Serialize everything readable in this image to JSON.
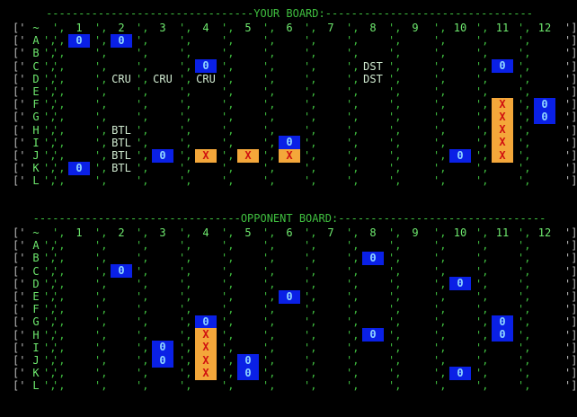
{
  "your_board": {
    "title": "YOUR BOARD:",
    "corner": "~",
    "columns": [
      "1",
      "2",
      "3",
      "4",
      "5",
      "6",
      "7",
      "8",
      "9",
      "10",
      "11",
      "12"
    ],
    "rows": [
      "A",
      "B",
      "C",
      "D",
      "E",
      "F",
      "G",
      "H",
      "I",
      "J",
      "K",
      "L"
    ],
    "marks": [
      {
        "row": "A",
        "col": "1",
        "text": "0",
        "type": "miss"
      },
      {
        "row": "A",
        "col": "2",
        "text": "0",
        "type": "miss"
      },
      {
        "row": "C",
        "col": "4",
        "text": "0",
        "type": "miss"
      },
      {
        "row": "C",
        "col": "11",
        "text": "0",
        "type": "miss"
      },
      {
        "row": "F",
        "col": "12",
        "text": "0",
        "type": "miss"
      },
      {
        "row": "G",
        "col": "12",
        "text": "0",
        "type": "miss"
      },
      {
        "row": "I",
        "col": "6",
        "text": "0",
        "type": "miss"
      },
      {
        "row": "J",
        "col": "3",
        "text": "0",
        "type": "miss"
      },
      {
        "row": "J",
        "col": "10",
        "text": "0",
        "type": "miss"
      },
      {
        "row": "K",
        "col": "1",
        "text": "0",
        "type": "miss"
      },
      {
        "row": "J",
        "col": "4",
        "text": "X",
        "type": "hit"
      },
      {
        "row": "J",
        "col": "5",
        "text": "X",
        "type": "hit"
      },
      {
        "row": "J",
        "col": "6",
        "text": "X",
        "type": "hit"
      },
      {
        "row": "F",
        "col": "11",
        "text": "X",
        "type": "hit"
      },
      {
        "row": "G",
        "col": "11",
        "text": "X",
        "type": "hit"
      },
      {
        "row": "H",
        "col": "11",
        "text": "X",
        "type": "hit"
      },
      {
        "row": "I",
        "col": "11",
        "text": "X",
        "type": "hit"
      },
      {
        "row": "J",
        "col": "11",
        "text": "X",
        "type": "hit"
      }
    ],
    "ships": [
      {
        "row": "D",
        "col": "2",
        "text": "CRU"
      },
      {
        "row": "D",
        "col": "3",
        "text": "CRU"
      },
      {
        "row": "D",
        "col": "4",
        "text": "CRU"
      },
      {
        "row": "C",
        "col": "8",
        "text": "DST"
      },
      {
        "row": "D",
        "col": "8",
        "text": "DST"
      },
      {
        "row": "H",
        "col": "2",
        "text": "BTL"
      },
      {
        "row": "I",
        "col": "2",
        "text": "BTL"
      },
      {
        "row": "J",
        "col": "2",
        "text": "BTL"
      },
      {
        "row": "K",
        "col": "2",
        "text": "BTL"
      }
    ]
  },
  "opponent_board": {
    "title": "OPPONENT BOARD:",
    "corner": "~",
    "columns": [
      "1",
      "2",
      "3",
      "4",
      "5",
      "6",
      "7",
      "8",
      "9",
      "10",
      "11",
      "12"
    ],
    "rows": [
      "A",
      "B",
      "C",
      "D",
      "E",
      "F",
      "G",
      "H",
      "I",
      "J",
      "K",
      "L"
    ],
    "marks": [
      {
        "row": "B",
        "col": "8",
        "text": "0",
        "type": "miss"
      },
      {
        "row": "C",
        "col": "2",
        "text": "0",
        "type": "miss"
      },
      {
        "row": "D",
        "col": "10",
        "text": "0",
        "type": "miss"
      },
      {
        "row": "E",
        "col": "6",
        "text": "0",
        "type": "miss"
      },
      {
        "row": "G",
        "col": "4",
        "text": "0",
        "type": "miss"
      },
      {
        "row": "G",
        "col": "11",
        "text": "0",
        "type": "miss"
      },
      {
        "row": "H",
        "col": "8",
        "text": "0",
        "type": "miss"
      },
      {
        "row": "H",
        "col": "11",
        "text": "0",
        "type": "miss"
      },
      {
        "row": "I",
        "col": "3",
        "text": "0",
        "type": "miss"
      },
      {
        "row": "J",
        "col": "3",
        "text": "0",
        "type": "miss"
      },
      {
        "row": "J",
        "col": "5",
        "text": "0",
        "type": "miss"
      },
      {
        "row": "K",
        "col": "5",
        "text": "0",
        "type": "miss"
      },
      {
        "row": "K",
        "col": "10",
        "text": "0",
        "type": "miss"
      },
      {
        "row": "H",
        "col": "4",
        "text": "X",
        "type": "hit"
      },
      {
        "row": "I",
        "col": "4",
        "text": "X",
        "type": "hit"
      },
      {
        "row": "J",
        "col": "4",
        "text": "X",
        "type": "hit"
      },
      {
        "row": "K",
        "col": "4",
        "text": "X",
        "type": "hit"
      }
    ],
    "ships": []
  },
  "colors": {
    "background": "#000000",
    "grid_text": "#6ee96e",
    "miss_bg": "#0a20e6",
    "miss_fg": "#8fd6ff",
    "hit_bg": "#f4a73a",
    "hit_fg": "#d01010"
  }
}
